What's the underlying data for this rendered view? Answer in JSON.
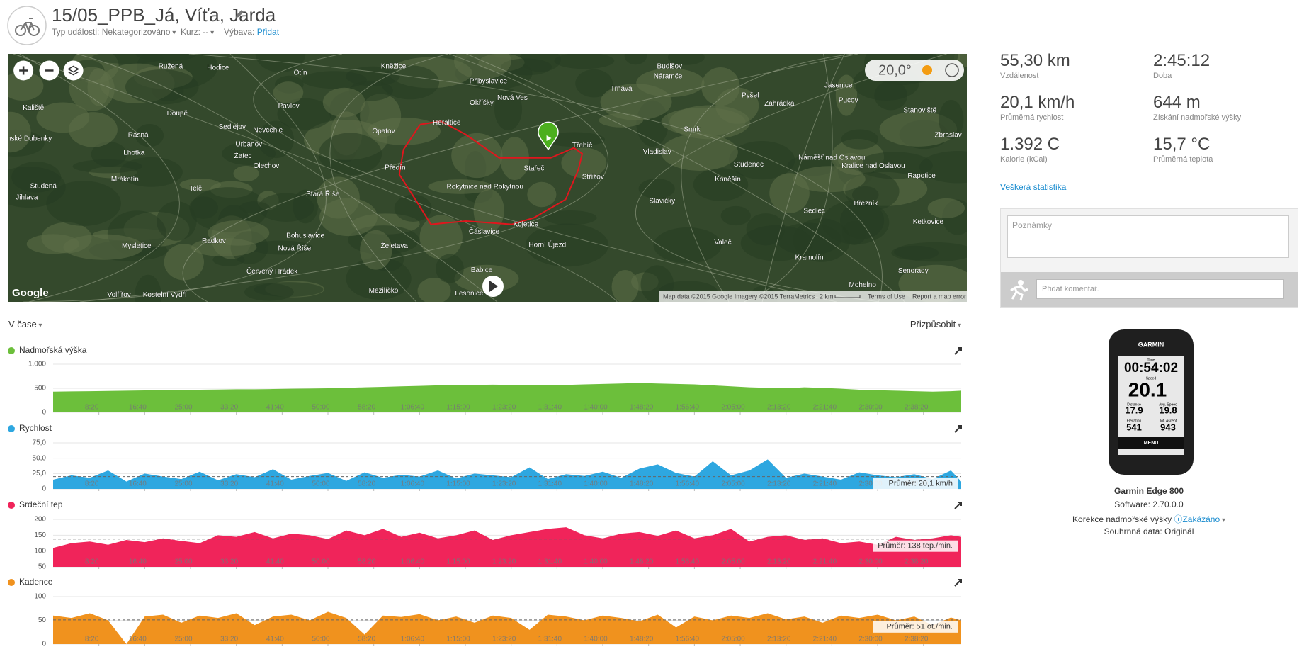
{
  "header": {
    "title": "15/05_PPB_Já, Víťa, Jarda",
    "event_type_label": "Typ události:",
    "event_type": "Nekategorizováno",
    "course_label": "Kurz:",
    "course": "--",
    "gear_label": "Výbava:",
    "gear": "Přidat"
  },
  "map": {
    "temperature": "20,0°",
    "attribution": "Map data ©2015 Google Imagery ©2015 TerraMetrics",
    "scale": "2 km",
    "terms": "Terms of Use",
    "report": "Report a map error",
    "logo": "Google",
    "places": [
      "Ružená",
      "Hodice",
      "Otín",
      "Kněžice",
      "Přibyslavice",
      "Trnava",
      "Budišov",
      "Náramče",
      "Pyšel",
      "Jasenice",
      "Pucov",
      "Kaliště",
      "Doupě",
      "Pavlov",
      "Okříšky",
      "Nová Ves",
      "Zahrádka",
      "Stanoviště",
      "Panské Dubenky",
      "Rasná",
      "Sedlejov",
      "Nevcehle",
      "Opatov",
      "Heraltice",
      "Třebíč",
      "Smrk",
      "Zbraslav",
      "Lhotka",
      "Urbanov",
      "Žatec",
      "Vladislav",
      "Studenec",
      "Náměšť nad Oslavou",
      "Kralice nad Oslavou",
      "Mrákotín",
      "Olechov",
      "Předín",
      "Stařeč",
      "Střížov",
      "Rokytnice nad Rokytnou",
      "Koněšín",
      "Rapotice",
      "Studená",
      "Telč",
      "Stará Říše",
      "Slavičky",
      "Březník",
      "Jihlava",
      "Sedlec",
      "Radkov",
      "Bohuslavice",
      "Čáslavice",
      "Kojetice",
      "Horní Újezd",
      "Ketkovice",
      "Mysletice",
      "Nová Říše",
      "Želetava",
      "Valeč",
      "Kramolín",
      "Červený Hrádek",
      "Babice",
      "Senorady",
      "Volfířov",
      "Kostelní Vydří",
      "Mezilíčko",
      "Lesonice",
      "Mohelno"
    ]
  },
  "stats": [
    {
      "value": "55,30 km",
      "label": "Vzdálenost"
    },
    {
      "value": "2:45:12",
      "label": "Doba"
    },
    {
      "value": "20,1 km/h",
      "label": "Průměrná rychlost"
    },
    {
      "value": "644 m",
      "label": "Získání nadmořské výšky"
    },
    {
      "value": "1.392 C",
      "label": "Kalorie (kCal)"
    },
    {
      "value": "15,7 °C",
      "label": "Průměrná teplota"
    }
  ],
  "all_stats_link": "Veškerá statistika",
  "notes_placeholder": "Poznámky",
  "comment_placeholder": "Přidat komentář.",
  "device": {
    "name": "Garmin Edge 800",
    "software": "Software: 2.70.0.0",
    "elevation_correction": "Korekce nadmořské výšky",
    "elevation_correction_value": "Zakázáno",
    "summary": "Souhrnná data: Originál",
    "screen": {
      "brand": "GARMIN",
      "time_label": "Time",
      "time": "00:54:02",
      "speed_label": "Speed",
      "speed": "20.1",
      "distance_label": "Distance",
      "distance": "17.9",
      "avg_speed_label": "Avg. Speed",
      "avg_speed": "19.8",
      "elevation_label": "Elevation",
      "elevation": "541",
      "ascent_label": "Tot. Ascent",
      "ascent": "943",
      "menu": "MENU"
    }
  },
  "controls": {
    "view": "V čase",
    "customize": "Přizpůsobit"
  },
  "chart_data": [
    {
      "type": "area",
      "title": "Nadmořská výška",
      "color": "#6cbf3b",
      "xlim": [
        0,
        9912
      ],
      "ylim": [
        0,
        1000
      ],
      "yticks": [
        0,
        500,
        {
          "value": 1000,
          "label": "1.000"
        }
      ],
      "xticks": [
        {
          "value": 500,
          "label": "8:20"
        },
        {
          "value": 1000,
          "label": "16:40"
        },
        {
          "value": 1500,
          "label": "25:00"
        },
        {
          "value": 2000,
          "label": "33:20"
        },
        {
          "value": 2500,
          "label": "41:40"
        },
        {
          "value": 3000,
          "label": "50:00"
        },
        {
          "value": 3500,
          "label": "58:20"
        },
        {
          "value": 4000,
          "label": "1:06:40"
        },
        {
          "value": 4500,
          "label": "1:15:00"
        },
        {
          "value": 5000,
          "label": "1:23:20"
        },
        {
          "value": 5500,
          "label": "1:31:40"
        },
        {
          "value": 6000,
          "label": "1:40:00"
        },
        {
          "value": 6500,
          "label": "1:48:20"
        },
        {
          "value": 7000,
          "label": "1:56:40"
        },
        {
          "value": 7500,
          "label": "2:05:00"
        },
        {
          "value": 8000,
          "label": "2:13:20"
        },
        {
          "value": 8500,
          "label": "2:21:40"
        },
        {
          "value": 9000,
          "label": "2:30:00"
        },
        {
          "value": 9500,
          "label": "2:38:20"
        }
      ],
      "x": [
        0,
        200,
        400,
        600,
        800,
        1000,
        1200,
        1400,
        1600,
        1800,
        2000,
        2200,
        2400,
        2600,
        2800,
        3000,
        3200,
        3400,
        3600,
        3800,
        4000,
        4200,
        4400,
        4600,
        4800,
        5000,
        5200,
        5400,
        5600,
        5800,
        6000,
        6200,
        6400,
        6600,
        6800,
        7000,
        7200,
        7400,
        7600,
        7800,
        8000,
        8200,
        8400,
        8600,
        8800,
        9000,
        9200,
        9400,
        9600,
        9800,
        9912
      ],
      "values": [
        430,
        435,
        440,
        445,
        450,
        455,
        460,
        470,
        470,
        475,
        480,
        480,
        485,
        490,
        495,
        500,
        510,
        520,
        530,
        540,
        550,
        560,
        565,
        570,
        575,
        570,
        565,
        560,
        570,
        580,
        590,
        600,
        610,
        600,
        590,
        580,
        560,
        540,
        520,
        510,
        500,
        520,
        510,
        490,
        470,
        460,
        450,
        440,
        430,
        440,
        450
      ]
    },
    {
      "type": "area",
      "title": "Rychlost",
      "color": "#2ea7e0",
      "xlim": [
        0,
        9912
      ],
      "ylim": [
        0,
        75
      ],
      "yticks": [
        0,
        {
          "value": 25,
          "label": "25,0"
        },
        {
          "value": 50,
          "label": "50,0"
        },
        {
          "value": 75,
          "label": "75,0"
        }
      ],
      "average": {
        "value": 20.1,
        "label": "Průměr: 20,1 km/h"
      },
      "xticks": [
        {
          "value": 500,
          "label": "8:20"
        },
        {
          "value": 1000,
          "label": "16:40"
        },
        {
          "value": 1500,
          "label": "25:00"
        },
        {
          "value": 2000,
          "label": "33:20"
        },
        {
          "value": 2500,
          "label": "41:40"
        },
        {
          "value": 3000,
          "label": "50:00"
        },
        {
          "value": 3500,
          "label": "58:20"
        },
        {
          "value": 4000,
          "label": "1:06:40"
        },
        {
          "value": 4500,
          "label": "1:15:00"
        },
        {
          "value": 5000,
          "label": "1:23:20"
        },
        {
          "value": 5500,
          "label": "1:31:40"
        },
        {
          "value": 6000,
          "label": "1:40:00"
        },
        {
          "value": 6500,
          "label": "1:48:20"
        },
        {
          "value": 7000,
          "label": "1:56:40"
        },
        {
          "value": 7500,
          "label": "2:05:00"
        },
        {
          "value": 8000,
          "label": "2:13:20"
        },
        {
          "value": 8500,
          "label": "2:21:40"
        },
        {
          "value": 9000,
          "label": "2:30:00"
        },
        {
          "value": 9500,
          "label": "2:38:20"
        }
      ],
      "x": [
        0,
        200,
        400,
        600,
        800,
        1000,
        1200,
        1400,
        1600,
        1800,
        2000,
        2200,
        2400,
        2600,
        2800,
        3000,
        3200,
        3400,
        3600,
        3800,
        4000,
        4200,
        4400,
        4600,
        4800,
        5000,
        5200,
        5400,
        5600,
        5800,
        6000,
        6200,
        6400,
        6600,
        6800,
        7000,
        7200,
        7400,
        7600,
        7800,
        8000,
        8200,
        8400,
        8600,
        8800,
        9000,
        9200,
        9400,
        9600,
        9800,
        9912
      ],
      "values": [
        15,
        22,
        18,
        30,
        12,
        25,
        20,
        16,
        28,
        14,
        24,
        19,
        32,
        15,
        21,
        26,
        13,
        27,
        18,
        23,
        20,
        30,
        17,
        25,
        22,
        19,
        35,
        16,
        24,
        21,
        28,
        18,
        33,
        40,
        26,
        20,
        45,
        22,
        30,
        48,
        18,
        25,
        20,
        15,
        27,
        22,
        19,
        24,
        16,
        30,
        12
      ]
    },
    {
      "type": "area",
      "title": "Srdeční tep",
      "color": "#f0245a",
      "xlim": [
        0,
        9912
      ],
      "ylim": [
        50,
        200
      ],
      "yticks": [
        50,
        100,
        150,
        200
      ],
      "average": {
        "value": 138,
        "label": "Průměr: 138 tep./min."
      },
      "xticks": [
        {
          "value": 500,
          "label": "8:20"
        },
        {
          "value": 1000,
          "label": "16:40"
        },
        {
          "value": 1500,
          "label": "25:00"
        },
        {
          "value": 2000,
          "label": "33:20"
        },
        {
          "value": 2500,
          "label": "41:40"
        },
        {
          "value": 3000,
          "label": "50:00"
        },
        {
          "value": 3500,
          "label": "58:20"
        },
        {
          "value": 4000,
          "label": "1:06:40"
        },
        {
          "value": 4500,
          "label": "1:15:00"
        },
        {
          "value": 5000,
          "label": "1:23:20"
        },
        {
          "value": 5500,
          "label": "1:31:40"
        },
        {
          "value": 6000,
          "label": "1:40:00"
        },
        {
          "value": 6500,
          "label": "1:48:20"
        },
        {
          "value": 7000,
          "label": "1:56:40"
        },
        {
          "value": 7500,
          "label": "2:05:00"
        },
        {
          "value": 8000,
          "label": "2:13:20"
        },
        {
          "value": 8500,
          "label": "2:21:40"
        },
        {
          "value": 9000,
          "label": "2:30:00"
        },
        {
          "value": 9500,
          "label": "2:38:20"
        }
      ],
      "x": [
        0,
        200,
        400,
        600,
        800,
        1000,
        1200,
        1400,
        1600,
        1800,
        2000,
        2200,
        2400,
        2600,
        2800,
        3000,
        3200,
        3400,
        3600,
        3800,
        4000,
        4200,
        4400,
        4600,
        4800,
        5000,
        5200,
        5400,
        5600,
        5800,
        6000,
        6200,
        6400,
        6600,
        6800,
        7000,
        7200,
        7400,
        7600,
        7800,
        8000,
        8200,
        8400,
        8600,
        8800,
        9000,
        9200,
        9400,
        9600,
        9800,
        9912
      ],
      "values": [
        110,
        125,
        130,
        120,
        135,
        128,
        140,
        132,
        125,
        150,
        145,
        160,
        140,
        155,
        150,
        138,
        165,
        150,
        170,
        145,
        158,
        140,
        150,
        165,
        135,
        150,
        160,
        170,
        175,
        150,
        140,
        155,
        160,
        148,
        165,
        140,
        150,
        170,
        130,
        145,
        150,
        135,
        140,
        125,
        130,
        120,
        145,
        135,
        140,
        150,
        145
      ]
    },
    {
      "type": "area",
      "title": "Kadence",
      "color": "#f0921e",
      "xlim": [
        0,
        9912
      ],
      "ylim": [
        0,
        100
      ],
      "yticks": [
        0,
        50,
        100
      ],
      "average": {
        "value": 51,
        "label": "Průměr: 51 ot./min."
      },
      "xticks": [
        {
          "value": 500,
          "label": "8:20"
        },
        {
          "value": 1000,
          "label": "16:40"
        },
        {
          "value": 1500,
          "label": "25:00"
        },
        {
          "value": 2000,
          "label": "33:20"
        },
        {
          "value": 2500,
          "label": "41:40"
        },
        {
          "value": 3000,
          "label": "50:00"
        },
        {
          "value": 3500,
          "label": "58:20"
        },
        {
          "value": 4000,
          "label": "1:06:40"
        },
        {
          "value": 4500,
          "label": "1:15:00"
        },
        {
          "value": 5000,
          "label": "1:23:20"
        },
        {
          "value": 5500,
          "label": "1:31:40"
        },
        {
          "value": 6000,
          "label": "1:40:00"
        },
        {
          "value": 6500,
          "label": "1:48:20"
        },
        {
          "value": 7000,
          "label": "1:56:40"
        },
        {
          "value": 7500,
          "label": "2:05:00"
        },
        {
          "value": 8000,
          "label": "2:13:20"
        },
        {
          "value": 8500,
          "label": "2:21:40"
        },
        {
          "value": 9000,
          "label": "2:30:00"
        },
        {
          "value": 9500,
          "label": "2:38:20"
        }
      ],
      "x": [
        0,
        200,
        400,
        600,
        800,
        1000,
        1200,
        1400,
        1600,
        1800,
        2000,
        2200,
        2400,
        2600,
        2800,
        3000,
        3200,
        3400,
        3600,
        3800,
        4000,
        4200,
        4400,
        4600,
        4800,
        5000,
        5200,
        5400,
        5600,
        5800,
        6000,
        6200,
        6400,
        6600,
        6800,
        7000,
        7200,
        7400,
        7600,
        7800,
        8000,
        8200,
        8400,
        8600,
        8800,
        9000,
        9200,
        9400,
        9600,
        9800,
        9912
      ],
      "values": [
        60,
        55,
        65,
        50,
        0,
        58,
        62,
        45,
        60,
        55,
        65,
        40,
        58,
        62,
        50,
        68,
        55,
        20,
        60,
        57,
        63,
        50,
        58,
        45,
        60,
        55,
        30,
        62,
        58,
        50,
        60,
        55,
        48,
        62,
        35,
        58,
        50,
        60,
        55,
        65,
        52,
        58,
        45,
        60,
        55,
        62,
        50,
        58,
        40,
        56,
        50
      ]
    }
  ]
}
